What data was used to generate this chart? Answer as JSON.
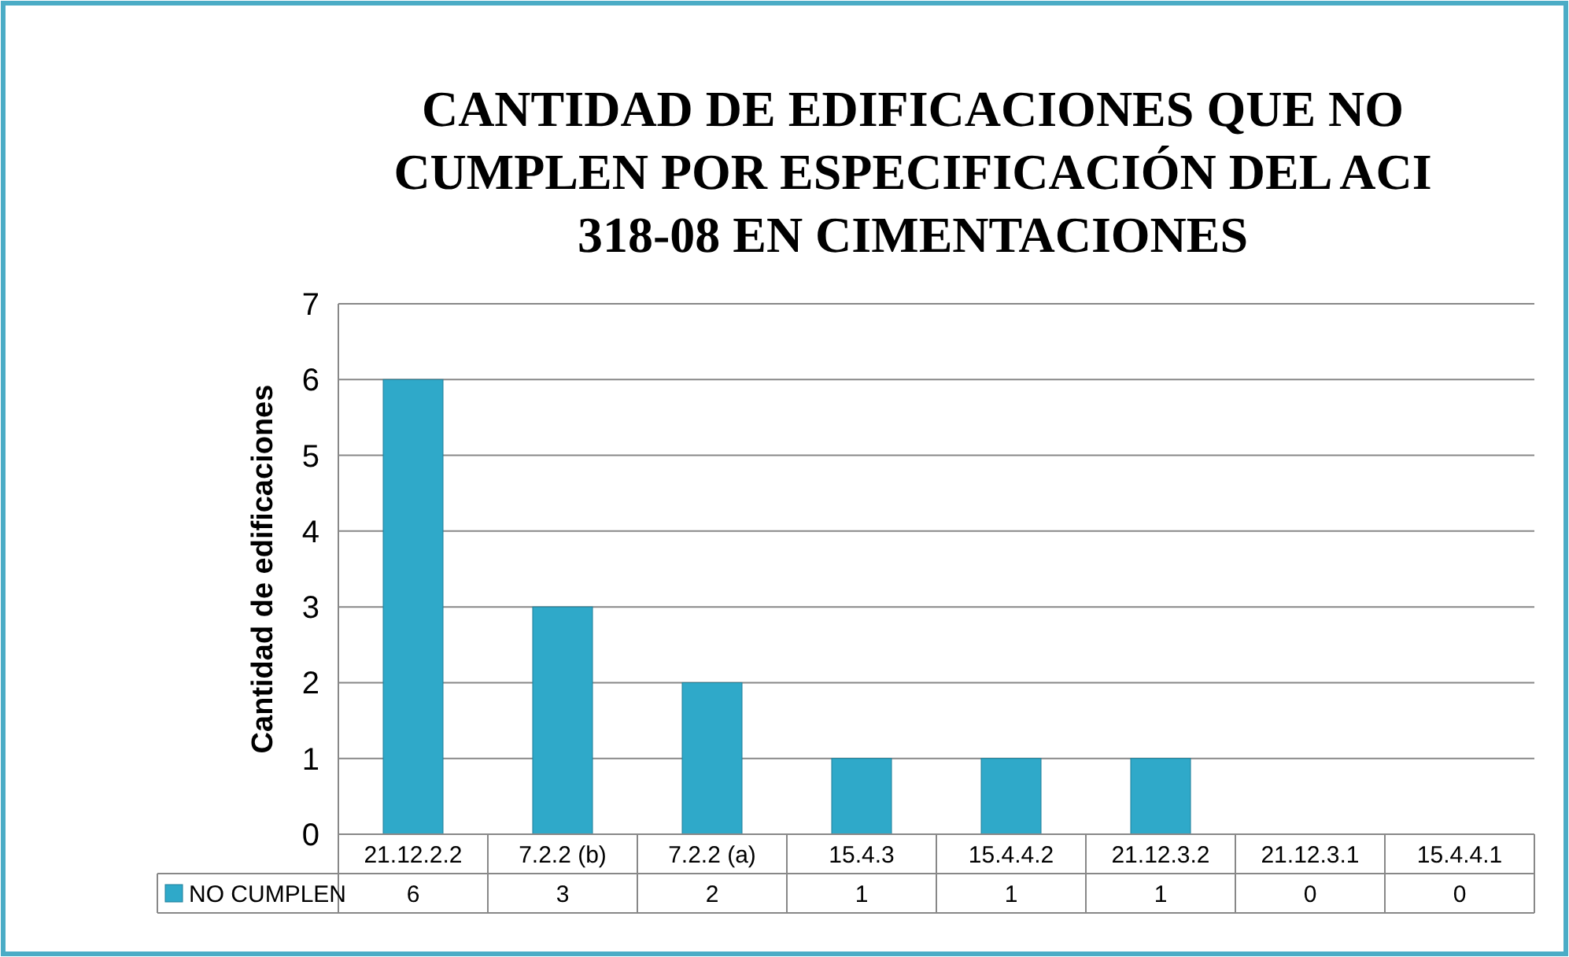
{
  "chart_data": {
    "type": "bar",
    "title": "CANTIDAD DE EDIFICACIONES QUE NO CUMPLEN POR ESPECIFICACIÓN DEL ACI 318-08 EN CIMENTACIONES",
    "ylabel": "Cantidad de edificaciones",
    "categories": [
      "21.12.2.2",
      "7.2.2 (b)",
      "7.2.2 (a)",
      "15.4.3",
      "15.4.4.2",
      "21.12.3.2",
      "21.12.3.1",
      "15.4.4.1"
    ],
    "series": [
      {
        "name": "NO CUMPLEN",
        "color": "#2fa9c9",
        "values": [
          6,
          3,
          2,
          1,
          1,
          1,
          0,
          0
        ]
      }
    ],
    "ylim": [
      0,
      7
    ],
    "yticks": [
      0,
      1,
      2,
      3,
      4,
      5,
      6,
      7
    ],
    "grid": "y",
    "data_labels": true,
    "legend": "bottom"
  }
}
